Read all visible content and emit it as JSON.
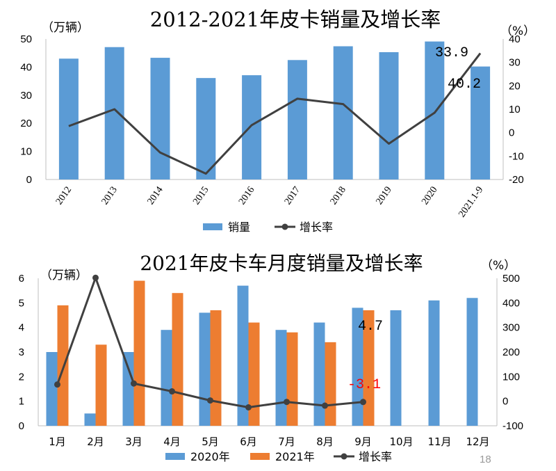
{
  "page_number": "18",
  "colors": {
    "blue": "#5b9bd5",
    "orange": "#ed7d31",
    "line": "#404040",
    "annotation_red": "#ff0000",
    "grid": "#bfbfbf",
    "text": "#000000"
  },
  "chart_data": [
    {
      "type": "bar",
      "title": "2012-2021年皮卡销量及增长率",
      "left_unit": "（万辆）",
      "right_unit": "（%）",
      "categories": [
        "2012",
        "2013",
        "2014",
        "2015",
        "2016",
        "2017",
        "2018",
        "2019",
        "2020",
        "2021.1-9"
      ],
      "left_ticks": [
        "50",
        "40",
        "30",
        "20",
        "10",
        "0"
      ],
      "right_ticks": [
        "40",
        "30",
        "20",
        "10",
        "0",
        "-10",
        "-20"
      ],
      "ylim_left": [
        0,
        50
      ],
      "ylim_right": [
        -20,
        40
      ],
      "series": [
        {
          "name": "销量",
          "kind": "bar",
          "axis": "left",
          "color": "#5b9bd5",
          "values": [
            43.0,
            47.1,
            43.3,
            36.1,
            37.1,
            42.5,
            47.4,
            45.3,
            49.1,
            40.2
          ]
        },
        {
          "name": "增长率",
          "kind": "line",
          "axis": "right",
          "color": "#404040",
          "values": [
            2.8,
            10.0,
            -8.5,
            -17.5,
            3.2,
            14.5,
            12.2,
            -4.7,
            8.5,
            33.9
          ]
        }
      ],
      "annotations": [
        {
          "text": "33.9",
          "series": 1,
          "index": 9,
          "color": "#000000"
        },
        {
          "text": "40.2",
          "series": 0,
          "index": 9,
          "color": "#000000"
        }
      ],
      "legend": {
        "position": "bottom",
        "entries": [
          "销量",
          "增长率"
        ]
      }
    },
    {
      "type": "bar",
      "title": "2021年皮卡车月度销量及增长率",
      "left_unit": "（万辆）",
      "right_unit": "（%）",
      "categories": [
        "1月",
        "2月",
        "3月",
        "4月",
        "5月",
        "6月",
        "7月",
        "8月",
        "9月",
        "10月",
        "11月",
        "12月"
      ],
      "left_ticks": [
        "6",
        "5",
        "4",
        "3",
        "2",
        "1",
        "0"
      ],
      "right_ticks": [
        "500",
        "400",
        "300",
        "200",
        "100",
        "0",
        "-100"
      ],
      "ylim_left": [
        0,
        6
      ],
      "ylim_right": [
        -100,
        500
      ],
      "series": [
        {
          "name": "2020年",
          "kind": "bar",
          "axis": "left",
          "color": "#5b9bd5",
          "values": [
            3.0,
            0.5,
            3.0,
            3.9,
            4.6,
            5.7,
            3.9,
            4.2,
            4.8,
            4.7,
            5.1,
            5.2
          ]
        },
        {
          "name": "2021年",
          "kind": "bar",
          "axis": "left",
          "color": "#ed7d31",
          "values": [
            4.9,
            3.3,
            5.9,
            5.4,
            4.7,
            4.2,
            3.8,
            3.4,
            4.7,
            null,
            null,
            null
          ]
        },
        {
          "name": "增长率",
          "kind": "line",
          "axis": "right",
          "color": "#404040",
          "values": [
            68,
            502,
            72,
            40,
            3,
            -25,
            -3,
            -18,
            -3.1,
            null,
            null,
            null
          ]
        }
      ],
      "annotations": [
        {
          "text": "4.7",
          "series": 1,
          "index": 8,
          "color": "#000000"
        },
        {
          "text": "-3.1",
          "series": 2,
          "index": 8,
          "color": "#ff0000"
        }
      ],
      "legend": {
        "position": "bottom",
        "entries": [
          "2020年",
          "2021年",
          "增长率"
        ]
      }
    }
  ]
}
